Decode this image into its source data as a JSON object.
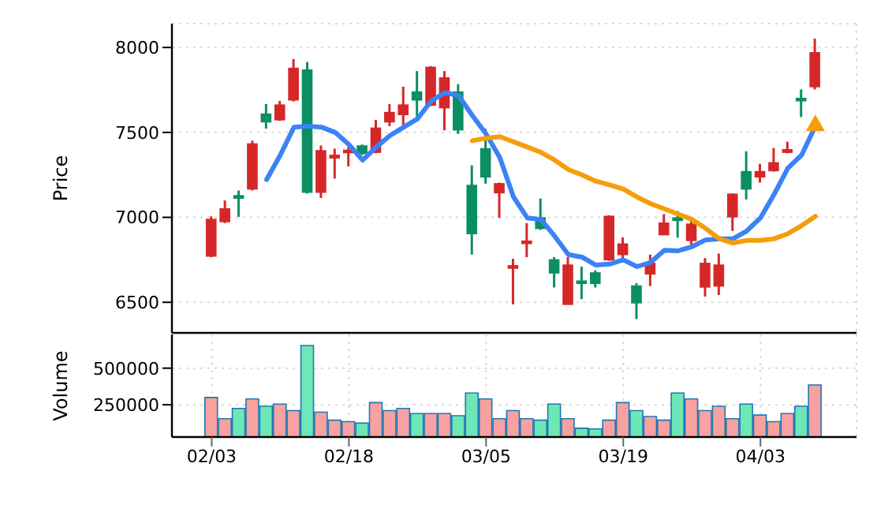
{
  "chart_data": [
    {
      "type": "candlestick",
      "ylabel": "Price",
      "tick_labels": "y",
      "grid": true,
      "ohlc": [
        [
          6772,
          7006,
          6766,
          6988
        ],
        [
          6975,
          7099,
          6966,
          7050
        ],
        [
          7127,
          7158,
          7003,
          7114
        ],
        [
          7167,
          7451,
          7158,
          7432
        ],
        [
          7608,
          7667,
          7522,
          7562
        ],
        [
          7574,
          7685,
          7568,
          7661
        ],
        [
          7691,
          7932,
          7682,
          7877
        ],
        [
          7867,
          7914,
          7140,
          7148
        ],
        [
          7148,
          7423,
          7114,
          7392
        ],
        [
          7350,
          7404,
          7228,
          7365
        ],
        [
          7385,
          7414,
          7300,
          7395
        ],
        [
          7420,
          7429,
          7367,
          7377
        ],
        [
          7383,
          7574,
          7377,
          7525
        ],
        [
          7562,
          7667,
          7537,
          7617
        ],
        [
          7605,
          7769,
          7537,
          7661
        ],
        [
          7738,
          7861,
          7593,
          7691
        ],
        [
          7661,
          7890,
          7655,
          7883
        ],
        [
          7645,
          7861,
          7512,
          7821
        ],
        [
          7738,
          7784,
          7491,
          7515
        ],
        [
          7188,
          7306,
          6781,
          6904
        ],
        [
          7404,
          7522,
          7198,
          7238
        ],
        [
          7145,
          7205,
          6997,
          7198
        ],
        [
          6705,
          6756,
          6488,
          6715
        ],
        [
          6850,
          6966,
          6766,
          6860
        ],
        [
          6997,
          7111,
          6926,
          6935
        ],
        [
          6750,
          6766,
          6587,
          6673
        ],
        [
          6488,
          6766,
          6488,
          6719
        ],
        [
          6625,
          6710,
          6519,
          6618
        ],
        [
          6673,
          6688,
          6587,
          6611
        ],
        [
          6750,
          7012,
          6745,
          7006
        ],
        [
          6781,
          6883,
          6741,
          6843
        ],
        [
          6596,
          6612,
          6401,
          6497
        ],
        [
          6667,
          6781,
          6596,
          6729
        ],
        [
          6898,
          7019,
          6895,
          6966
        ],
        [
          6997,
          7037,
          6880,
          6982
        ],
        [
          6864,
          6982,
          6837,
          6960
        ],
        [
          6590,
          6760,
          6534,
          6729
        ],
        [
          6596,
          6787,
          6543,
          6719
        ],
        [
          7003,
          7141,
          6920,
          7136
        ],
        [
          7269,
          7389,
          7105,
          7167
        ],
        [
          7238,
          7315,
          7204,
          7269
        ],
        [
          7275,
          7408,
          7269,
          7321
        ],
        [
          7383,
          7445,
          7377,
          7398
        ],
        [
          7700,
          7753,
          7590,
          7690
        ],
        [
          7769,
          8052,
          7753,
          7969
        ]
      ],
      "colors": [
        "#d62728",
        "#d62728",
        "#0b8f62",
        "#d62728",
        "#0b8f62",
        "#d62728",
        "#d62728",
        "#0b8f62",
        "#d62728",
        "#d62728",
        "#d62728",
        "#0b8f62",
        "#d62728",
        "#d62728",
        "#d62728",
        "#0b8f62",
        "#d62728",
        "#d62728",
        "#0b8f62",
        "#0b8f62",
        "#0b8f62",
        "#d62728",
        "#d62728",
        "#d62728",
        "#0b8f62",
        "#0b8f62",
        "#d62728",
        "#0b8f62",
        "#0b8f62",
        "#d62728",
        "#d62728",
        "#0b8f62",
        "#d62728",
        "#d62728",
        "#0b8f62",
        "#d62728",
        "#d62728",
        "#d62728",
        "#d62728",
        "#0b8f62",
        "#d62728",
        "#d62728",
        "#d62728",
        "#0b8f62",
        "#d62728"
      ],
      "series": [
        {
          "type": "line",
          "color": "#3b82f6",
          "values": [
            null,
            null,
            null,
            null,
            7222,
            7367,
            7531,
            7537,
            7531,
            7500,
            7429,
            7337,
            7414,
            7482,
            7531,
            7580,
            7685,
            7735,
            7716,
            7599,
            7491,
            7352,
            7120,
            6997,
            6988,
            6889,
            6781,
            6766,
            6719,
            6725,
            6750,
            6710,
            6735,
            6806,
            6803,
            6827,
            6867,
            6874,
            6874,
            6920,
            6997,
            7136,
            7290,
            7367,
            7537
          ]
        },
        {
          "type": "line",
          "color": "#f59e0b",
          "values": [
            null,
            null,
            null,
            null,
            null,
            null,
            null,
            null,
            null,
            null,
            null,
            null,
            null,
            null,
            null,
            null,
            null,
            null,
            null,
            7451,
            7466,
            7475,
            7445,
            7414,
            7383,
            7337,
            7281,
            7250,
            7213,
            7191,
            7167,
            7120,
            7080,
            7050,
            7019,
            6988,
            6935,
            6874,
            6849,
            6864,
            6864,
            6874,
            6904,
            6951,
            7006
          ]
        },
        {
          "type": "scatter",
          "marker": "triangle",
          "color": "#f59e0b",
          "values": [
            null,
            null,
            null,
            null,
            null,
            null,
            null,
            null,
            null,
            null,
            null,
            null,
            null,
            null,
            null,
            null,
            null,
            null,
            null,
            null,
            null,
            null,
            null,
            null,
            null,
            null,
            null,
            null,
            null,
            null,
            null,
            null,
            null,
            null,
            null,
            null,
            null,
            null,
            null,
            null,
            null,
            null,
            null,
            null,
            7540
          ]
        }
      ],
      "ylim": [
        6320,
        8140
      ],
      "yticks": [
        6500,
        7000,
        7500,
        8000
      ]
    },
    {
      "type": "bar",
      "ylabel": "Volume",
      "grid": true,
      "categories": [
        "02/03",
        null,
        null,
        null,
        null,
        null,
        null,
        null,
        null,
        null,
        "02/18",
        null,
        null,
        null,
        null,
        null,
        null,
        null,
        null,
        null,
        "03/05",
        null,
        null,
        null,
        null,
        null,
        null,
        null,
        null,
        null,
        "03/19",
        null,
        null,
        null,
        null,
        null,
        null,
        null,
        null,
        null,
        "04/03",
        null,
        null,
        null,
        null
      ],
      "values": [
        300000,
        155000,
        225000,
        290000,
        240000,
        255000,
        210000,
        655000,
        200000,
        145000,
        135000,
        125000,
        265000,
        210000,
        225000,
        190000,
        190000,
        190000,
        175000,
        330000,
        290000,
        155000,
        210000,
        155000,
        145000,
        255000,
        155000,
        90000,
        85000,
        145000,
        265000,
        210000,
        170000,
        145000,
        330000,
        290000,
        210000,
        240000,
        155000,
        255000,
        180000,
        135000,
        190000,
        240000,
        385000
      ],
      "colors": [
        "#f7a1a1",
        "#f7a1a1",
        "#6ee7b7",
        "#f7a1a1",
        "#6ee7b7",
        "#f7a1a1",
        "#f7a1a1",
        "#6ee7b7",
        "#f7a1a1",
        "#f7a1a1",
        "#f7a1a1",
        "#6ee7b7",
        "#f7a1a1",
        "#f7a1a1",
        "#f7a1a1",
        "#6ee7b7",
        "#f7a1a1",
        "#f7a1a1",
        "#6ee7b7",
        "#6ee7b7",
        "#f7a1a1",
        "#f7a1a1",
        "#f7a1a1",
        "#f7a1a1",
        "#6ee7b7",
        "#6ee7b7",
        "#f7a1a1",
        "#6ee7b7",
        "#6ee7b7",
        "#f7a1a1",
        "#f7a1a1",
        "#6ee7b7",
        "#f7a1a1",
        "#f7a1a1",
        "#6ee7b7",
        "#f7a1a1",
        "#f7a1a1",
        "#f7a1a1",
        "#f7a1a1",
        "#6ee7b7",
        "#f7a1a1",
        "#f7a1a1",
        "#f7a1a1",
        "#6ee7b7",
        "#f7a1a1"
      ],
      "ylim": [
        30000,
        730000
      ],
      "yticks": [
        250000,
        500000
      ]
    }
  ]
}
